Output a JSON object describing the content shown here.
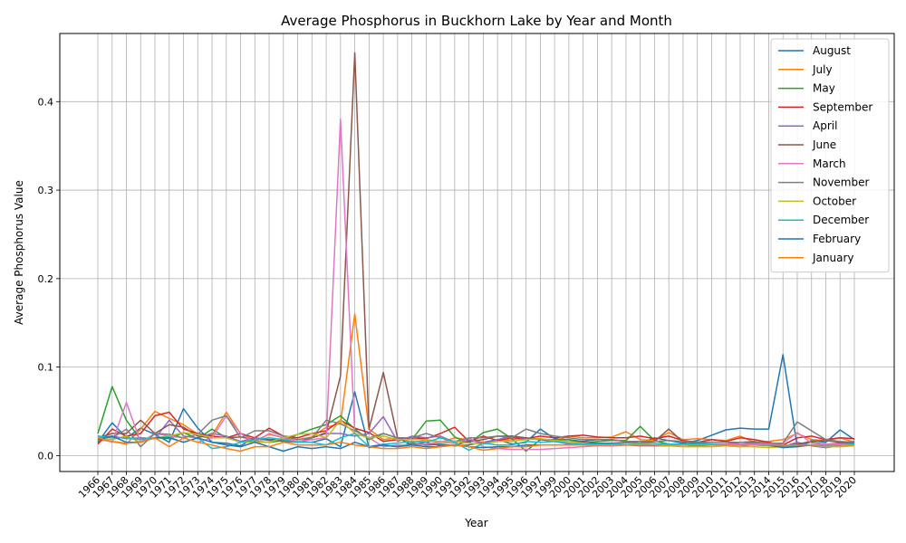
{
  "chart_data": {
    "type": "line",
    "title": "Average Phosphorus in Buckhorn Lake by Year and Month",
    "xlabel": "Year",
    "ylabel": "Average Phosphorus Value",
    "ylim": [
      -0.018,
      0.477
    ],
    "yticks": [
      0.0,
      0.1,
      0.2,
      0.3,
      0.4
    ],
    "ytick_labels": [
      "0.0",
      "0.1",
      "0.2",
      "0.3",
      "0.4"
    ],
    "x_categories": [
      "1966",
      "1967",
      "1968",
      "1969",
      "1970",
      "1971",
      "1972",
      "1973",
      "1974",
      "1975",
      "1976",
      "1977",
      "1978",
      "1979",
      "1980",
      "1981",
      "1982",
      "1983",
      "1984",
      "1985",
      "1986",
      "1987",
      "1988",
      "1989",
      "1990",
      "1991",
      "1992",
      "1993",
      "1994",
      "1995",
      "1996",
      "1997",
      "1999",
      "2000",
      "2001",
      "2002",
      "2003",
      "2004",
      "2005",
      "2006",
      "2007",
      "2008",
      "2009",
      "2010",
      "2011",
      "2012",
      "2013",
      "2014",
      "2015",
      "2016",
      "2017",
      "2018",
      "2019",
      "2020"
    ],
    "grid": true,
    "legend_position": "top-right",
    "series": [
      {
        "name": "August",
        "color": "#1f77b4",
        "values": [
          0.015,
          0.037,
          0.02,
          0.031,
          0.024,
          0.015,
          0.053,
          0.031,
          0.015,
          0.014,
          0.011,
          0.02,
          0.018,
          0.018,
          0.016,
          0.015,
          0.019,
          0.01,
          0.072,
          0.009,
          0.012,
          0.01,
          0.014,
          0.012,
          0.013,
          0.011,
          0.012,
          0.015,
          0.018,
          0.013,
          0.015,
          0.03,
          0.019,
          0.018,
          0.016,
          0.018,
          0.018,
          0.016,
          0.014,
          0.02,
          0.017,
          0.014,
          0.017,
          0.023,
          0.029,
          0.031,
          0.03,
          0.03,
          0.114,
          0.01,
          0.017,
          0.015,
          0.029,
          0.018
        ]
      },
      {
        "name": "July",
        "color": "#ff7f0e",
        "values": [
          0.018,
          0.016,
          0.013,
          0.03,
          0.05,
          0.042,
          0.035,
          0.024,
          0.023,
          0.049,
          0.025,
          0.017,
          0.024,
          0.02,
          0.018,
          0.021,
          0.032,
          0.036,
          0.16,
          0.03,
          0.018,
          0.02,
          0.015,
          0.017,
          0.015,
          0.02,
          0.018,
          0.015,
          0.016,
          0.018,
          0.019,
          0.019,
          0.017,
          0.022,
          0.02,
          0.02,
          0.021,
          0.027,
          0.018,
          0.017,
          0.026,
          0.018,
          0.019,
          0.018,
          0.017,
          0.022,
          0.015,
          0.016,
          0.018,
          0.025,
          0.018,
          0.017,
          0.02,
          0.015
        ]
      },
      {
        "name": "May",
        "color": "#2ca02c",
        "values": [
          0.025,
          0.078,
          0.04,
          0.018,
          0.02,
          0.019,
          0.026,
          0.019,
          0.03,
          0.02,
          0.016,
          0.016,
          0.015,
          0.017,
          0.024,
          0.03,
          0.035,
          0.045,
          0.03,
          0.018,
          0.025,
          0.02,
          0.018,
          0.039,
          0.04,
          0.021,
          0.014,
          0.026,
          0.03,
          0.019,
          0.005,
          0.018,
          0.018,
          0.018,
          0.014,
          0.016,
          0.017,
          0.017,
          0.033,
          0.017,
          0.013,
          0.012,
          0.011,
          0.012,
          0.013,
          0.015,
          0.016,
          0.013,
          0.01,
          0.012,
          0.015,
          0.013,
          0.014,
          0.016
        ]
      },
      {
        "name": "September",
        "color": "#d62728",
        "values": [
          0.013,
          0.03,
          0.022,
          0.025,
          0.045,
          0.049,
          0.03,
          0.025,
          0.022,
          0.02,
          0.025,
          0.02,
          0.031,
          0.022,
          0.02,
          0.025,
          0.028,
          0.04,
          0.031,
          0.026,
          0.016,
          0.018,
          0.02,
          0.019,
          0.025,
          0.032,
          0.016,
          0.022,
          0.017,
          0.02,
          0.019,
          0.022,
          0.02,
          0.022,
          0.023,
          0.021,
          0.02,
          0.02,
          0.022,
          0.019,
          0.022,
          0.017,
          0.015,
          0.018,
          0.016,
          0.02,
          0.018,
          0.015,
          0.012,
          0.02,
          0.022,
          0.018,
          0.02,
          0.019
        ]
      },
      {
        "name": "April",
        "color": "#9467bd",
        "values": [
          0.02,
          0.022,
          0.019,
          0.02,
          0.019,
          0.04,
          0.022,
          0.02,
          0.025,
          0.022,
          0.016,
          0.02,
          0.017,
          0.018,
          0.015,
          0.02,
          0.025,
          0.025,
          0.022,
          0.025,
          0.044,
          0.016,
          0.022,
          0.02,
          0.022,
          0.015,
          0.017,
          0.014,
          0.018,
          0.022,
          0.019,
          0.018,
          0.016,
          0.013,
          0.012,
          0.012,
          0.011,
          0.012,
          0.011,
          0.011,
          0.011,
          0.012,
          0.012,
          0.012,
          0.011,
          0.01,
          0.013,
          0.012,
          0.01,
          0.015,
          0.011,
          0.009,
          0.011,
          0.015
        ]
      },
      {
        "name": "June",
        "color": "#8c564b",
        "values": [
          0.02,
          0.025,
          0.025,
          0.04,
          0.025,
          0.035,
          0.032,
          0.022,
          0.02,
          0.02,
          0.021,
          0.018,
          0.018,
          0.016,
          0.015,
          0.02,
          0.026,
          0.09,
          0.455,
          0.03,
          0.094,
          0.02,
          0.012,
          0.015,
          0.011,
          0.012,
          0.016,
          0.018,
          0.022,
          0.022,
          0.02,
          0.018,
          0.017,
          0.016,
          0.015,
          0.014,
          0.014,
          0.015,
          0.014,
          0.016,
          0.03,
          0.015,
          0.014,
          0.013,
          0.012,
          0.015,
          0.014,
          0.012,
          0.011,
          0.013,
          0.016,
          0.017,
          0.015,
          0.014
        ]
      },
      {
        "name": "March",
        "color": "#e377c2",
        "values": [
          0.02,
          0.015,
          0.06,
          0.015,
          0.025,
          0.022,
          0.02,
          0.015,
          0.02,
          0.045,
          0.025,
          0.015,
          0.025,
          0.02,
          0.016,
          0.018,
          0.02,
          0.38,
          0.025,
          0.02,
          0.01,
          0.012,
          0.012,
          0.013,
          0.015,
          0.014,
          0.02,
          0.01,
          0.008,
          0.007,
          0.007,
          0.007,
          0.008,
          0.009,
          0.01,
          0.011,
          0.011,
          0.012,
          0.012,
          0.012,
          0.012,
          0.012,
          0.013,
          0.013,
          0.013,
          0.013,
          0.013,
          0.013,
          0.014,
          0.026,
          0.014,
          0.013,
          0.013,
          0.013
        ]
      },
      {
        "name": "November",
        "color": "#7f7f7f",
        "values": [
          0.022,
          0.02,
          0.03,
          0.01,
          0.025,
          0.024,
          0.02,
          0.024,
          0.04,
          0.045,
          0.02,
          0.028,
          0.028,
          0.022,
          0.018,
          0.02,
          0.04,
          0.036,
          0.028,
          0.02,
          0.025,
          0.02,
          0.02,
          0.025,
          0.02,
          0.016,
          0.02,
          0.02,
          0.022,
          0.02,
          0.03,
          0.025,
          0.022,
          0.02,
          0.018,
          0.018,
          0.018,
          0.016,
          0.016,
          0.016,
          0.017,
          0.016,
          0.015,
          0.015,
          0.015,
          0.015,
          0.015,
          0.014,
          0.014,
          0.038,
          0.028,
          0.018,
          0.016,
          0.015
        ]
      },
      {
        "name": "October",
        "color": "#bcbd22",
        "values": [
          0.02,
          0.018,
          0.022,
          0.015,
          0.02,
          0.022,
          0.026,
          0.024,
          0.02,
          0.02,
          0.015,
          0.015,
          0.015,
          0.02,
          0.024,
          0.025,
          0.02,
          0.04,
          0.025,
          0.02,
          0.022,
          0.018,
          0.018,
          0.018,
          0.016,
          0.016,
          0.014,
          0.013,
          0.016,
          0.016,
          0.018,
          0.019,
          0.017,
          0.016,
          0.014,
          0.012,
          0.013,
          0.014,
          0.013,
          0.012,
          0.011,
          0.01,
          0.01,
          0.01,
          0.011,
          0.01,
          0.01,
          0.009,
          0.01,
          0.011,
          0.012,
          0.01,
          0.01,
          0.011
        ]
      },
      {
        "name": "December",
        "color": "#17becf",
        "values": [
          0.022,
          0.02,
          0.02,
          0.018,
          0.02,
          0.021,
          0.015,
          0.02,
          0.008,
          0.01,
          0.015,
          0.018,
          0.02,
          0.018,
          0.015,
          0.015,
          0.012,
          0.02,
          0.025,
          0.01,
          0.013,
          0.014,
          0.016,
          0.015,
          0.02,
          0.015,
          0.006,
          0.014,
          0.012,
          0.012,
          0.016,
          0.015,
          0.016,
          0.014,
          0.013,
          0.013,
          0.013,
          0.014,
          0.014,
          0.014,
          0.013,
          0.013,
          0.013,
          0.013,
          0.012,
          0.012,
          0.012,
          0.011,
          0.01,
          0.011,
          0.012,
          0.011,
          0.012,
          0.013
        ]
      },
      {
        "name": "February",
        "color": "#1f77b4",
        "values": [
          0.018,
          0.022,
          0.015,
          0.015,
          0.02,
          0.02,
          0.015,
          0.02,
          0.015,
          0.012,
          0.01,
          0.015,
          0.01,
          0.005,
          0.01,
          0.008,
          0.01,
          0.008,
          0.015,
          0.01,
          0.012,
          0.01,
          0.012,
          0.01,
          0.01,
          0.012,
          0.01,
          0.009,
          0.01,
          0.01,
          0.012,
          0.012,
          0.012,
          0.012,
          0.012,
          0.012,
          0.012,
          0.012,
          0.012,
          0.012,
          0.012,
          0.012,
          0.012,
          0.012,
          0.012,
          0.012,
          0.012,
          0.012,
          0.009,
          0.01,
          0.012,
          0.012,
          0.012,
          0.012
        ]
      },
      {
        "name": "January",
        "color": "#ff7f0e",
        "values": [
          0.02,
          0.016,
          0.014,
          0.015,
          0.02,
          0.01,
          0.02,
          0.015,
          0.012,
          0.008,
          0.005,
          0.01,
          0.01,
          0.015,
          0.012,
          0.012,
          0.012,
          0.015,
          0.012,
          0.01,
          0.008,
          0.008,
          0.01,
          0.008,
          0.01,
          0.012,
          0.01,
          0.006,
          0.008,
          0.01,
          0.01,
          0.012,
          0.012,
          0.012,
          0.012,
          0.012,
          0.012,
          0.012,
          0.012,
          0.012,
          0.012,
          0.012,
          0.012,
          0.012,
          0.012,
          0.012,
          0.012,
          0.012,
          0.012,
          0.012,
          0.012,
          0.012,
          0.012,
          0.012
        ]
      }
    ]
  }
}
